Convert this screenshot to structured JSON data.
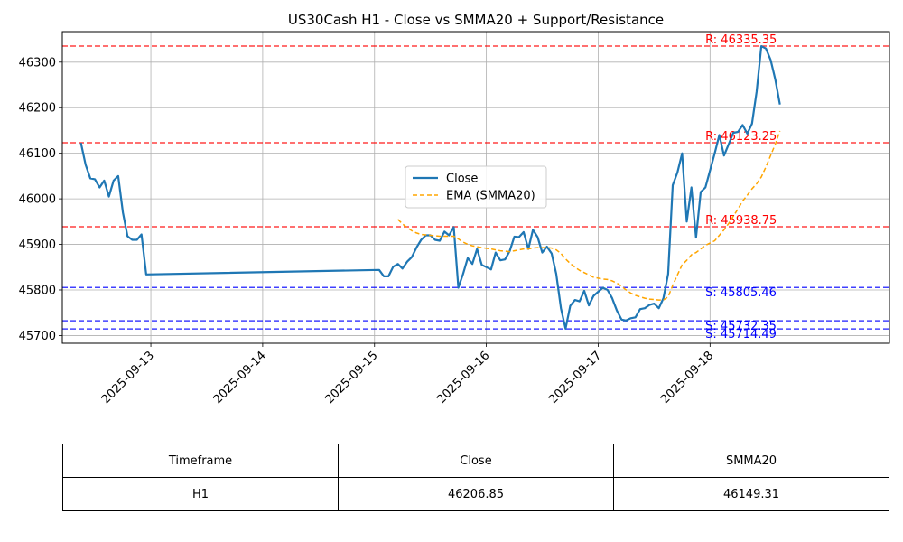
{
  "chart_data": {
    "type": "line",
    "title": "US30Cash H1 - Close vs SMMA20 + Support/Resistance",
    "xlabel": "",
    "ylabel": "",
    "grid": true,
    "legend_position": "center-right",
    "ylim": [
      45683,
      46367
    ],
    "xlim": [
      "2025-09-12 05:00",
      "2025-09-19 14:30"
    ],
    "x_ticks": [
      "2025-09-13",
      "2025-09-14",
      "2025-09-15",
      "2025-09-16",
      "2025-09-17",
      "2025-09-18"
    ],
    "y_ticks": [
      45700,
      45800,
      45900,
      46000,
      46100,
      46200,
      46300
    ],
    "colors": {
      "close": "#1f77b4",
      "ema": "#ffa500",
      "resistance": "#ff0000",
      "support": "#0000ff",
      "grid": "#b0b0b0"
    },
    "series": [
      {
        "name": "Close",
        "style": "solid",
        "points": [
          [
            "2025-09-12 09:00",
            46123
          ],
          [
            "2025-09-12 10:00",
            46075
          ],
          [
            "2025-09-12 11:00",
            46045
          ],
          [
            "2025-09-12 12:00",
            46043
          ],
          [
            "2025-09-12 13:00",
            46025
          ],
          [
            "2025-09-12 14:00",
            46040
          ],
          [
            "2025-09-12 15:00",
            46005
          ],
          [
            "2025-09-12 16:00",
            46040
          ],
          [
            "2025-09-12 17:00",
            46050
          ],
          [
            "2025-09-12 18:00",
            45970
          ],
          [
            "2025-09-12 19:00",
            45918
          ],
          [
            "2025-09-12 20:00",
            45910
          ],
          [
            "2025-09-12 21:00",
            45910
          ],
          [
            "2025-09-12 22:00",
            45922
          ],
          [
            "2025-09-12 23:00",
            45834
          ],
          [
            "2025-09-15 01:00",
            45844
          ],
          [
            "2025-09-15 02:00",
            45830
          ],
          [
            "2025-09-15 03:00",
            45830
          ],
          [
            "2025-09-15 04:00",
            45851
          ],
          [
            "2025-09-15 05:00",
            45857
          ],
          [
            "2025-09-15 06:00",
            45847
          ],
          [
            "2025-09-15 07:00",
            45862
          ],
          [
            "2025-09-15 08:00",
            45872
          ],
          [
            "2025-09-15 09:00",
            45893
          ],
          [
            "2025-09-15 10:00",
            45910
          ],
          [
            "2025-09-15 11:00",
            45920
          ],
          [
            "2025-09-15 12:00",
            45920
          ],
          [
            "2025-09-15 13:00",
            45910
          ],
          [
            "2025-09-15 14:00",
            45908
          ],
          [
            "2025-09-15 15:00",
            45928
          ],
          [
            "2025-09-15 16:00",
            45920
          ],
          [
            "2025-09-15 17:00",
            45938
          ],
          [
            "2025-09-15 18:00",
            45805
          ],
          [
            "2025-09-15 19:00",
            45835
          ],
          [
            "2025-09-15 20:00",
            45870
          ],
          [
            "2025-09-15 21:00",
            45857
          ],
          [
            "2025-09-15 22:00",
            45890
          ],
          [
            "2025-09-15 23:00",
            45855
          ],
          [
            "2025-09-16 01:00",
            45845
          ],
          [
            "2025-09-16 02:00",
            45882
          ],
          [
            "2025-09-16 03:00",
            45865
          ],
          [
            "2025-09-16 04:00",
            45867
          ],
          [
            "2025-09-16 05:00",
            45885
          ],
          [
            "2025-09-16 06:00",
            45917
          ],
          [
            "2025-09-16 07:00",
            45916
          ],
          [
            "2025-09-16 08:00",
            45927
          ],
          [
            "2025-09-16 09:00",
            45890
          ],
          [
            "2025-09-16 10:00",
            45932
          ],
          [
            "2025-09-16 11:00",
            45916
          ],
          [
            "2025-09-16 12:00",
            45882
          ],
          [
            "2025-09-16 13:00",
            45895
          ],
          [
            "2025-09-16 14:00",
            45880
          ],
          [
            "2025-09-16 15:00",
            45835
          ],
          [
            "2025-09-16 16:00",
            45760
          ],
          [
            "2025-09-16 17:00",
            45715
          ],
          [
            "2025-09-16 18:00",
            45765
          ],
          [
            "2025-09-16 19:00",
            45778
          ],
          [
            "2025-09-16 20:00",
            45775
          ],
          [
            "2025-09-16 21:00",
            45798
          ],
          [
            "2025-09-16 22:00",
            45766
          ],
          [
            "2025-09-16 23:00",
            45787
          ],
          [
            "2025-09-17 01:00",
            45805
          ],
          [
            "2025-09-17 02:00",
            45800
          ],
          [
            "2025-09-17 03:00",
            45782
          ],
          [
            "2025-09-17 04:00",
            45755
          ],
          [
            "2025-09-17 05:00",
            45735
          ],
          [
            "2025-09-17 06:00",
            45733
          ],
          [
            "2025-09-17 07:00",
            45738
          ],
          [
            "2025-09-17 08:00",
            45740
          ],
          [
            "2025-09-17 09:00",
            45758
          ],
          [
            "2025-09-17 10:00",
            45760
          ],
          [
            "2025-09-17 11:00",
            45767
          ],
          [
            "2025-09-17 12:00",
            45770
          ],
          [
            "2025-09-17 13:00",
            45760
          ],
          [
            "2025-09-17 14:00",
            45782
          ],
          [
            "2025-09-17 15:00",
            45835
          ],
          [
            "2025-09-17 16:00",
            46030
          ],
          [
            "2025-09-17 17:00",
            46058
          ],
          [
            "2025-09-17 18:00",
            46100
          ],
          [
            "2025-09-17 19:00",
            45950
          ],
          [
            "2025-09-17 20:00",
            46025
          ],
          [
            "2025-09-17 21:00",
            45915
          ],
          [
            "2025-09-17 22:00",
            46015
          ],
          [
            "2025-09-17 23:00",
            46025
          ],
          [
            "2025-09-18 01:00",
            46100
          ],
          [
            "2025-09-18 02:00",
            46140
          ],
          [
            "2025-09-18 03:00",
            46095
          ],
          [
            "2025-09-18 04:00",
            46120
          ],
          [
            "2025-09-18 05:00",
            46145
          ],
          [
            "2025-09-18 06:00",
            46147
          ],
          [
            "2025-09-18 07:00",
            46162
          ],
          [
            "2025-09-18 08:00",
            46143
          ],
          [
            "2025-09-18 09:00",
            46165
          ],
          [
            "2025-09-18 10:00",
            46235
          ],
          [
            "2025-09-18 11:00",
            46335
          ],
          [
            "2025-09-18 12:00",
            46330
          ],
          [
            "2025-09-18 13:00",
            46305
          ],
          [
            "2025-09-18 14:00",
            46262
          ],
          [
            "2025-09-18 15:00",
            46207
          ]
        ]
      },
      {
        "name": "EMA (SMMA20)",
        "style": "dashed",
        "points": [
          [
            "2025-09-15 05:00",
            45955
          ],
          [
            "2025-09-15 06:00",
            45945
          ],
          [
            "2025-09-15 07:00",
            45937
          ],
          [
            "2025-09-15 08:00",
            45930
          ],
          [
            "2025-09-15 09:00",
            45925
          ],
          [
            "2025-09-15 10:00",
            45922
          ],
          [
            "2025-09-15 11:00",
            45921
          ],
          [
            "2025-09-15 12:00",
            45920
          ],
          [
            "2025-09-15 13:00",
            45919
          ],
          [
            "2025-09-15 14:00",
            45918
          ],
          [
            "2025-09-15 15:00",
            45918
          ],
          [
            "2025-09-15 16:00",
            45918
          ],
          [
            "2025-09-15 17:00",
            45918
          ],
          [
            "2025-09-15 18:00",
            45912
          ],
          [
            "2025-09-15 19:00",
            45905
          ],
          [
            "2025-09-15 20:00",
            45900
          ],
          [
            "2025-09-15 21:00",
            45897
          ],
          [
            "2025-09-15 22:00",
            45895
          ],
          [
            "2025-09-15 23:00",
            45893
          ],
          [
            "2025-09-16 01:00",
            45890
          ],
          [
            "2025-09-16 02:00",
            45888
          ],
          [
            "2025-09-16 03:00",
            45886
          ],
          [
            "2025-09-16 04:00",
            45885
          ],
          [
            "2025-09-16 05:00",
            45884
          ],
          [
            "2025-09-16 06:00",
            45886
          ],
          [
            "2025-09-16 07:00",
            45888
          ],
          [
            "2025-09-16 08:00",
            45890
          ],
          [
            "2025-09-16 09:00",
            45890
          ],
          [
            "2025-09-16 10:00",
            45892
          ],
          [
            "2025-09-16 11:00",
            45893
          ],
          [
            "2025-09-16 12:00",
            45893
          ],
          [
            "2025-09-16 13:00",
            45893
          ],
          [
            "2025-09-16 14:00",
            45892
          ],
          [
            "2025-09-16 15:00",
            45888
          ],
          [
            "2025-09-16 16:00",
            45880
          ],
          [
            "2025-09-16 17:00",
            45868
          ],
          [
            "2025-09-16 18:00",
            45858
          ],
          [
            "2025-09-16 19:00",
            45850
          ],
          [
            "2025-09-16 20:00",
            45843
          ],
          [
            "2025-09-16 21:00",
            45838
          ],
          [
            "2025-09-16 22:00",
            45833
          ],
          [
            "2025-09-16 23:00",
            45828
          ],
          [
            "2025-09-17 01:00",
            45824
          ],
          [
            "2025-09-17 02:00",
            45823
          ],
          [
            "2025-09-17 03:00",
            45820
          ],
          [
            "2025-09-17 04:00",
            45815
          ],
          [
            "2025-09-17 05:00",
            45808
          ],
          [
            "2025-09-17 06:00",
            45800
          ],
          [
            "2025-09-17 07:00",
            45793
          ],
          [
            "2025-09-17 08:00",
            45788
          ],
          [
            "2025-09-17 09:00",
            45785
          ],
          [
            "2025-09-17 10:00",
            45782
          ],
          [
            "2025-09-17 11:00",
            45780
          ],
          [
            "2025-09-17 12:00",
            45779
          ],
          [
            "2025-09-17 13:00",
            45778
          ],
          [
            "2025-09-17 14:00",
            45778
          ],
          [
            "2025-09-17 15:00",
            45785
          ],
          [
            "2025-09-17 16:00",
            45810
          ],
          [
            "2025-09-17 17:00",
            45833
          ],
          [
            "2025-09-17 18:00",
            45855
          ],
          [
            "2025-09-17 19:00",
            45865
          ],
          [
            "2025-09-17 20:00",
            45877
          ],
          [
            "2025-09-17 21:00",
            45882
          ],
          [
            "2025-09-17 22:00",
            45890
          ],
          [
            "2025-09-17 23:00",
            45898
          ],
          [
            "2025-09-18 01:00",
            45908
          ],
          [
            "2025-09-18 02:00",
            45920
          ],
          [
            "2025-09-18 03:00",
            45932
          ],
          [
            "2025-09-18 04:00",
            45946
          ],
          [
            "2025-09-18 05:00",
            45962
          ],
          [
            "2025-09-18 06:00",
            45978
          ],
          [
            "2025-09-18 07:00",
            45995
          ],
          [
            "2025-09-18 08:00",
            46008
          ],
          [
            "2025-09-18 09:00",
            46022
          ],
          [
            "2025-09-18 10:00",
            46033
          ],
          [
            "2025-09-18 11:00",
            46048
          ],
          [
            "2025-09-18 12:00",
            46070
          ],
          [
            "2025-09-18 13:00",
            46095
          ],
          [
            "2025-09-18 14:00",
            46120
          ],
          [
            "2025-09-18 15:00",
            46149
          ]
        ]
      }
    ],
    "levels": [
      {
        "kind": "resistance",
        "value": 46335.35,
        "label": "R: 46335.35"
      },
      {
        "kind": "resistance",
        "value": 46123.25,
        "label": "R: 46123.25"
      },
      {
        "kind": "resistance",
        "value": 45938.75,
        "label": "R: 45938.75"
      },
      {
        "kind": "support",
        "value": 45805.46,
        "label": "S: 45805.46"
      },
      {
        "kind": "support",
        "value": 45732.35,
        "label": "S: 45732.35"
      },
      {
        "kind": "support",
        "value": 45714.49,
        "label": "S: 45714.49"
      }
    ]
  },
  "table": {
    "headers": [
      "Timeframe",
      "Close",
      "SMMA20"
    ],
    "rows": [
      [
        "H1",
        "46206.85",
        "46149.31"
      ]
    ]
  }
}
